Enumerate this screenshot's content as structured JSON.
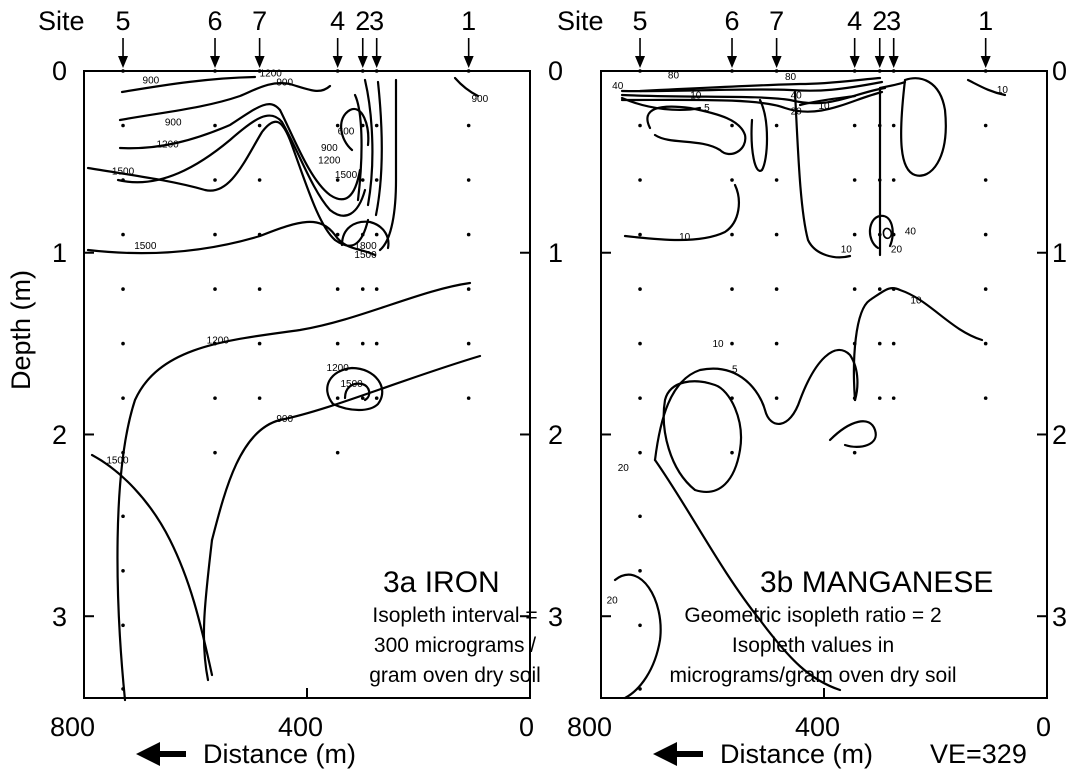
{
  "site_label": "Site",
  "sites": [
    {
      "label": "5",
      "distance": 730
    },
    {
      "label": "6",
      "distance": 565
    },
    {
      "label": "7",
      "distance": 485
    },
    {
      "label": "4",
      "distance": 345
    },
    {
      "label": "2",
      "distance": 300
    },
    {
      "label": "3",
      "distance": 275
    },
    {
      "label": "1",
      "distance": 110
    }
  ],
  "ylabel": "Depth (m)",
  "xlabel": "Distance (m)",
  "ve": "VE=329",
  "chart_data": [
    {
      "type": "contour",
      "title": "3a IRON",
      "note_lines": [
        "Isopleth interval =",
        "300 micrograms /",
        "gram oven dry soil"
      ],
      "x_ticks": [
        "800",
        "400",
        "0"
      ],
      "y_ticks": [
        "0",
        "1",
        "2",
        "3"
      ],
      "xlim": [
        800,
        0
      ],
      "ylim": [
        0,
        3.45
      ],
      "isopleth_labels": [
        {
          "text": "900",
          "x": 680,
          "y": 0.07
        },
        {
          "text": "1200",
          "x": 465,
          "y": 0.03
        },
        {
          "text": "900",
          "x": 440,
          "y": 0.08
        },
        {
          "text": "900",
          "x": 90,
          "y": 0.17
        },
        {
          "text": "900",
          "x": 640,
          "y": 0.3
        },
        {
          "text": "1200",
          "x": 650,
          "y": 0.42
        },
        {
          "text": "600",
          "x": 330,
          "y": 0.35
        },
        {
          "text": "900",
          "x": 360,
          "y": 0.44
        },
        {
          "text": "1200",
          "x": 360,
          "y": 0.51
        },
        {
          "text": "1500",
          "x": 330,
          "y": 0.59
        },
        {
          "text": "1500",
          "x": 730,
          "y": 0.57
        },
        {
          "text": "1800",
          "x": 295,
          "y": 0.98
        },
        {
          "text": "1500",
          "x": 295,
          "y": 1.03
        },
        {
          "text": "1500",
          "x": 690,
          "y": 0.98
        },
        {
          "text": "1200",
          "x": 560,
          "y": 1.5
        },
        {
          "text": "1200",
          "x": 345,
          "y": 1.65
        },
        {
          "text": "1500",
          "x": 320,
          "y": 1.74
        },
        {
          "text": "900",
          "x": 440,
          "y": 1.93
        },
        {
          "text": "1500",
          "x": 740,
          "y": 2.16
        }
      ]
    },
    {
      "type": "contour",
      "title": "3b MANGANESE",
      "note_lines": [
        "Geometric isopleth ratio = 2",
        "Isopleth values in",
        "micrograms/gram oven dry soil"
      ],
      "x_ticks": [
        "800",
        "400",
        "0"
      ],
      "y_ticks": [
        "0",
        "1",
        "2",
        "3"
      ],
      "xlim": [
        800,
        0
      ],
      "ylim": [
        0,
        3.45
      ],
      "isopleth_labels": [
        {
          "text": "80",
          "x": 670,
          "y": 0.04
        },
        {
          "text": "80",
          "x": 460,
          "y": 0.05
        },
        {
          "text": "40",
          "x": 770,
          "y": 0.1
        },
        {
          "text": "10",
          "x": 630,
          "y": 0.15
        },
        {
          "text": "40",
          "x": 450,
          "y": 0.15
        },
        {
          "text": "20",
          "x": 450,
          "y": 0.24
        },
        {
          "text": "10",
          "x": 400,
          "y": 0.21
        },
        {
          "text": "5",
          "x": 610,
          "y": 0.22
        },
        {
          "text": "10",
          "x": 80,
          "y": 0.12
        },
        {
          "text": "10",
          "x": 650,
          "y": 0.93
        },
        {
          "text": "10",
          "x": 360,
          "y": 1.0
        },
        {
          "text": "40",
          "x": 245,
          "y": 0.9
        },
        {
          "text": "20",
          "x": 270,
          "y": 1.0
        },
        {
          "text": "10",
          "x": 235,
          "y": 1.28
        },
        {
          "text": "10",
          "x": 590,
          "y": 1.52
        },
        {
          "text": "5",
          "x": 560,
          "y": 1.66
        },
        {
          "text": "20",
          "x": 760,
          "y": 2.2
        },
        {
          "text": "20",
          "x": 780,
          "y": 2.93
        }
      ]
    }
  ]
}
